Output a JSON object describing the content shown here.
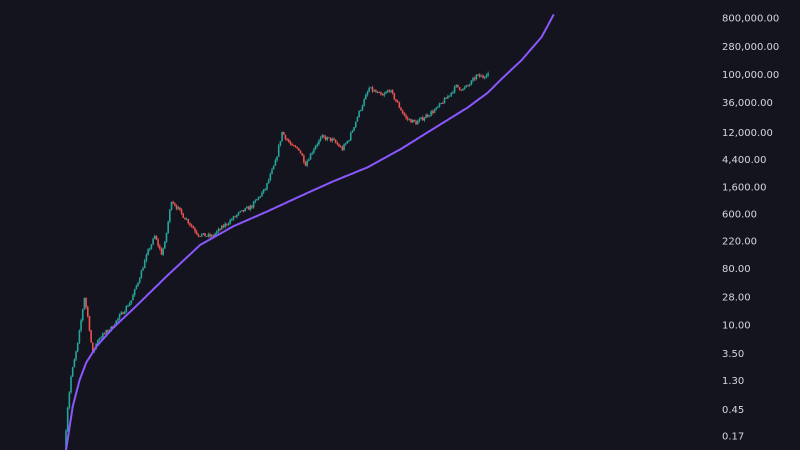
{
  "chart_data": {
    "type": "candlestick",
    "scale": "log",
    "grid": false,
    "legend": "none",
    "colors": {
      "background": "#14141f",
      "up": "#26a69a",
      "down": "#ef5350",
      "curve": "#8b57ff",
      "axis_text": "#d6d6de"
    },
    "y_ticks": [
      {
        "value": 800000,
        "label": "800,000.00"
      },
      {
        "value": 280000,
        "label": "280,000.00"
      },
      {
        "value": 100000,
        "label": "100,000.00"
      },
      {
        "value": 36000,
        "label": "36,000.00"
      },
      {
        "value": 12000,
        "label": "12,000.00"
      },
      {
        "value": 4400,
        "label": "4,400.00"
      },
      {
        "value": 1600,
        "label": "1,600.00"
      },
      {
        "value": 600,
        "label": "600.00"
      },
      {
        "value": 220,
        "label": "220.00"
      },
      {
        "value": 80,
        "label": "80.00"
      },
      {
        "value": 28,
        "label": "28.00"
      },
      {
        "value": 10,
        "label": "10.00"
      },
      {
        "value": 3.5,
        "label": "3.50"
      },
      {
        "value": 1.3,
        "label": "1.30"
      },
      {
        "value": 0.45,
        "label": "0.45"
      },
      {
        "value": 0.17,
        "label": "0.17"
      }
    ],
    "price_anchors": [
      [
        0.0,
        0.1
      ],
      [
        0.5,
        0.5
      ],
      [
        1.0,
        1.5
      ],
      [
        2.0,
        5
      ],
      [
        3.0,
        28
      ],
      [
        3.6,
        12
      ],
      [
        4.2,
        3.5
      ],
      [
        5.0,
        6
      ],
      [
        7.0,
        9
      ],
      [
        8.5,
        15
      ],
      [
        10.0,
        25
      ],
      [
        11.0,
        50
      ],
      [
        12.5,
        150
      ],
      [
        13.5,
        260
      ],
      [
        14.5,
        140
      ],
      [
        15.0,
        200
      ],
      [
        16.0,
        1000
      ],
      [
        17.5,
        600
      ],
      [
        18.5,
        450
      ],
      [
        20.0,
        280
      ],
      [
        22.0,
        260
      ],
      [
        24.0,
        400
      ],
      [
        26.0,
        600
      ],
      [
        28.0,
        800
      ],
      [
        30.0,
        1500
      ],
      [
        31.5,
        4000
      ],
      [
        32.5,
        12000
      ],
      [
        34.0,
        7000
      ],
      [
        35.0,
        6500
      ],
      [
        36.0,
        3800
      ],
      [
        37.5,
        7500
      ],
      [
        38.5,
        10000
      ],
      [
        40.0,
        9000
      ],
      [
        41.5,
        6500
      ],
      [
        42.5,
        9500
      ],
      [
        44.0,
        25000
      ],
      [
        45.5,
        60000
      ],
      [
        46.5,
        52000
      ],
      [
        47.5,
        45000
      ],
      [
        48.5,
        58000
      ],
      [
        49.5,
        38000
      ],
      [
        51.0,
        20000
      ],
      [
        52.5,
        17000
      ],
      [
        54.0,
        22000
      ],
      [
        55.5,
        28000
      ],
      [
        57.0,
        42000
      ],
      [
        58.5,
        65000
      ],
      [
        59.5,
        58000
      ],
      [
        60.5,
        70000
      ],
      [
        61.5,
        95000
      ],
      [
        62.5,
        92000
      ],
      [
        63.0,
        105000
      ]
    ],
    "curve_anchors": [
      [
        0.0,
        0.1
      ],
      [
        1.0,
        0.5
      ],
      [
        2.0,
        1.3
      ],
      [
        3.0,
        2.5
      ],
      [
        4.5,
        4.5
      ],
      [
        7.0,
        9
      ],
      [
        10.0,
        18
      ],
      [
        15.0,
        60
      ],
      [
        20.0,
        190
      ],
      [
        25.0,
        380
      ],
      [
        30.0,
        650
      ],
      [
        35.0,
        1150
      ],
      [
        40.0,
        2000
      ],
      [
        45.0,
        3300
      ],
      [
        50.0,
        6500
      ],
      [
        55.0,
        14000
      ],
      [
        60.0,
        30000
      ],
      [
        63.0,
        52000
      ],
      [
        65.0,
        85000
      ],
      [
        68.0,
        170000
      ],
      [
        71.0,
        400000
      ],
      [
        73.0,
        1000000
      ]
    ]
  }
}
